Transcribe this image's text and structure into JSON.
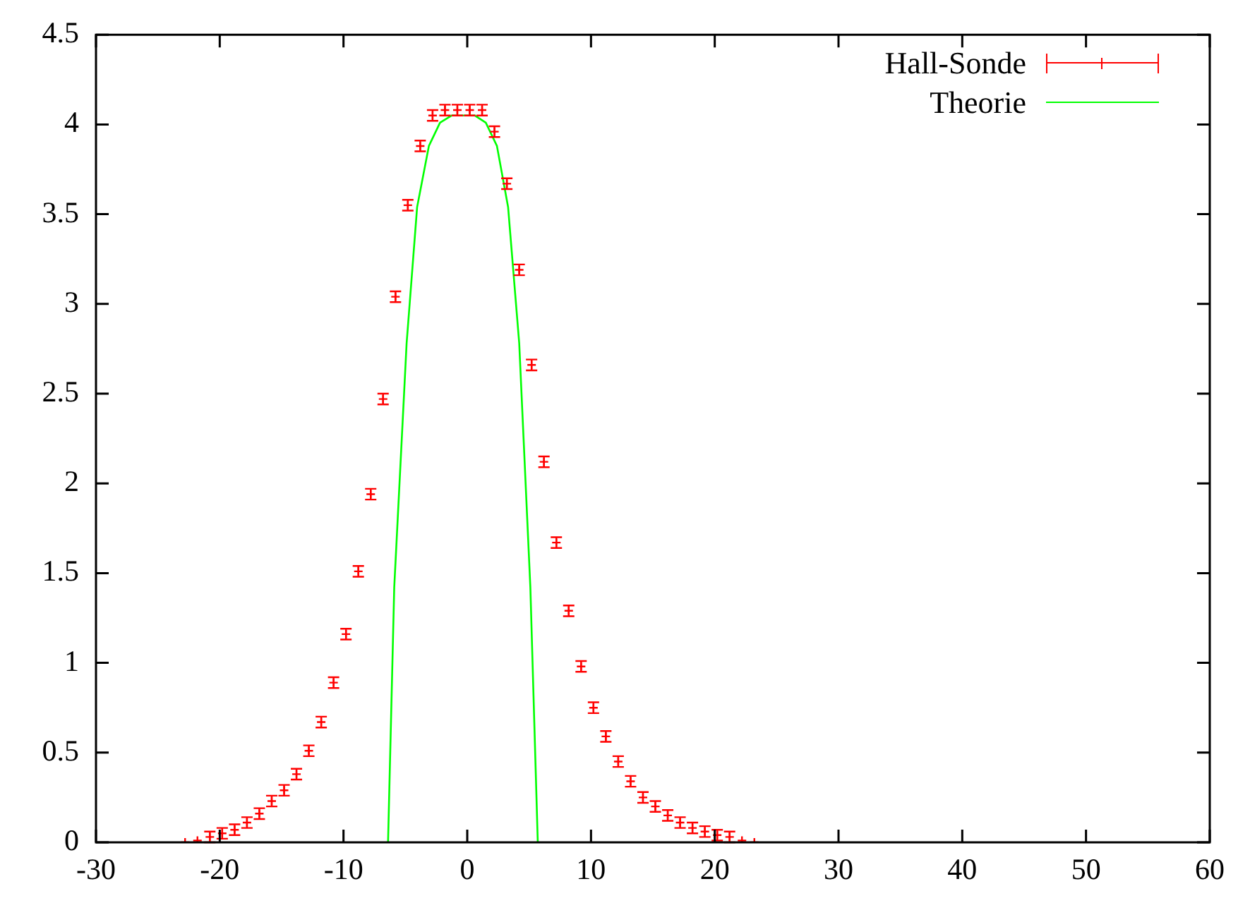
{
  "chart_data": {
    "type": "scatter",
    "xlim": [
      -30,
      60
    ],
    "ylim": [
      0,
      4.5
    ],
    "xticks": [
      -30,
      -20,
      -10,
      0,
      10,
      20,
      30,
      40,
      50,
      60
    ],
    "yticks": [
      0,
      0.5,
      1,
      1.5,
      2,
      2.5,
      3,
      3.5,
      4,
      4.5
    ],
    "legend": "top right",
    "series": [
      {
        "name": "Hall-Sonde",
        "marker": "cross",
        "color": "#ff0000",
        "x": [
          -22.8,
          -21.8,
          -20.8,
          -19.8,
          -18.8,
          -17.8,
          -16.8,
          -15.8,
          -14.8,
          -13.8,
          -12.8,
          -11.8,
          -10.8,
          -9.8,
          -8.8,
          -7.8,
          -6.8,
          -5.8,
          -4.8,
          -3.8,
          -2.8,
          -1.8,
          -0.8,
          0.2,
          1.2,
          2.2,
          3.2,
          4.2,
          5.2,
          6.2,
          7.2,
          8.2,
          9.2,
          10.2,
          11.2,
          12.2,
          13.2,
          14.2,
          15.2,
          16.2,
          17.2,
          18.2,
          19.2,
          20.2,
          21.2,
          22.2,
          23.2
        ],
        "values": [
          0.0,
          0.01,
          0.03,
          0.05,
          0.07,
          0.11,
          0.16,
          0.23,
          0.29,
          0.38,
          0.51,
          0.67,
          0.89,
          1.16,
          1.51,
          1.94,
          2.47,
          3.04,
          3.55,
          3.88,
          4.05,
          4.08,
          4.08,
          4.08,
          4.08,
          3.96,
          3.67,
          3.19,
          2.66,
          2.12,
          1.67,
          1.29,
          0.98,
          0.75,
          0.59,
          0.45,
          0.34,
          0.25,
          0.2,
          0.15,
          0.11,
          0.08,
          0.06,
          0.04,
          0.03,
          0.01,
          0.0
        ],
        "errors": [
          null,
          null,
          0.03,
          0.03,
          0.03,
          0.03,
          0.03,
          0.03,
          0.03,
          0.03,
          0.03,
          0.03,
          0.03,
          0.03,
          0.03,
          0.03,
          0.03,
          0.03,
          0.03,
          0.03,
          0.03,
          0.03,
          0.03,
          0.03,
          0.03,
          0.03,
          0.03,
          0.03,
          0.03,
          0.03,
          0.03,
          0.03,
          0.03,
          0.03,
          0.03,
          0.03,
          0.03,
          0.03,
          0.03,
          0.03,
          0.03,
          0.03,
          0.03,
          0.03,
          0.03,
          null,
          null
        ]
      },
      {
        "name": "Theorie",
        "type": "line",
        "marker": "none",
        "color": "#00ff00",
        "x": [
          -6.4,
          -5.9,
          -4.9,
          -4.05,
          -3.1,
          -2.2,
          -1.25,
          0.6,
          1.5,
          2.4,
          3.3,
          4.2,
          5.1,
          5.7
        ],
        "values": [
          0,
          1.42,
          2.78,
          3.54,
          3.88,
          4.01,
          4.05,
          4.05,
          4.01,
          3.88,
          3.54,
          2.78,
          1.42,
          0
        ]
      }
    ]
  }
}
